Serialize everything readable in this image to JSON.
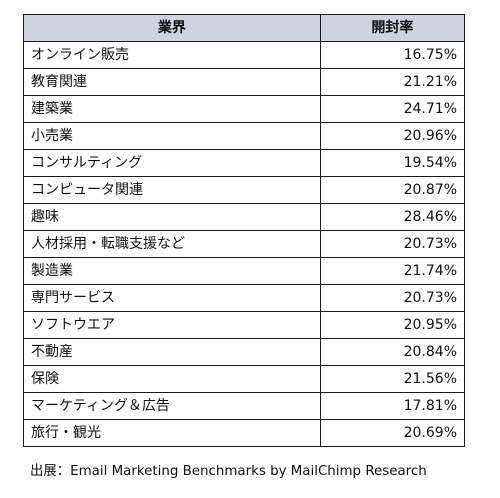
{
  "table": {
    "headers": [
      "業界",
      "開封率"
    ],
    "rows": [
      [
        "オンライン販売",
        "16.75%"
      ],
      [
        "教育関連",
        "21.21%"
      ],
      [
        "建築業",
        "24.71%"
      ],
      [
        "小売業",
        "20.96%"
      ],
      [
        "コンサルティング",
        "19.54%"
      ],
      [
        "コンピュータ関連",
        "20.87%"
      ],
      [
        "趣味",
        "28.46%"
      ],
      [
        "人材採用・転職支援など",
        "20.73%"
      ],
      [
        "製造業",
        "21.74%"
      ],
      [
        "専門サービス",
        "20.73%"
      ],
      [
        "ソフトウエア",
        "20.95%"
      ],
      [
        "不動産",
        "20.84%"
      ],
      [
        "保険",
        "21.56%"
      ],
      [
        "マーケティング＆広告",
        "17.81%"
      ],
      [
        "旅行・観光",
        "20.69%"
      ]
    ]
  },
  "source": "出展：Email Marketing Benchmarks by MailChimp Research",
  "colors": {
    "header_bg": "#cdd4df",
    "border": "#1a1a1a"
  }
}
